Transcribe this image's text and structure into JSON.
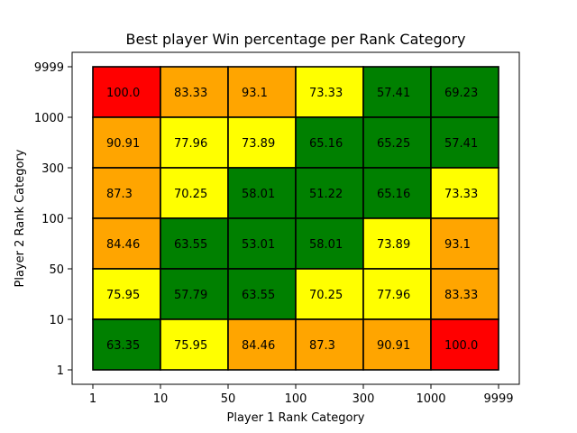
{
  "chart_data": {
    "type": "heatmap",
    "title": "Best player Win percentage per Rank Category",
    "xlabel": "Player 1 Rank Category",
    "ylabel": "Player 2 Rank Category",
    "x_ticks": [
      "1",
      "10",
      "50",
      "100",
      "300",
      "1000",
      "9999"
    ],
    "y_ticks": [
      "1",
      "10",
      "50",
      "100",
      "300",
      "1000",
      "9999"
    ],
    "rows_top_to_bottom": [
      [
        "100.0",
        "83.33",
        "93.1",
        "73.33",
        "57.41",
        "69.23"
      ],
      [
        "90.91",
        "77.96",
        "73.89",
        "65.16",
        "65.25",
        "57.41"
      ],
      [
        "87.3",
        "70.25",
        "58.01",
        "51.22",
        "65.16",
        "73.33"
      ],
      [
        "84.46",
        "63.55",
        "53.01",
        "58.01",
        "73.89",
        "93.1"
      ],
      [
        "75.95",
        "57.79",
        "63.55",
        "70.25",
        "77.96",
        "83.33"
      ],
      [
        "63.35",
        "75.95",
        "84.46",
        "87.3",
        "90.91",
        "100.0"
      ]
    ],
    "colors": {
      "green": "#008000",
      "yellow": "#ffff00",
      "orange": "#ffa500",
      "red": "#ff0000",
      "cell_border": "#000000"
    },
    "color_rules": [
      {
        "max": 70,
        "color": "green"
      },
      {
        "max": 80,
        "color": "yellow"
      },
      {
        "max": 99.99,
        "color": "orange"
      },
      {
        "max": 100,
        "color": "red"
      }
    ]
  }
}
